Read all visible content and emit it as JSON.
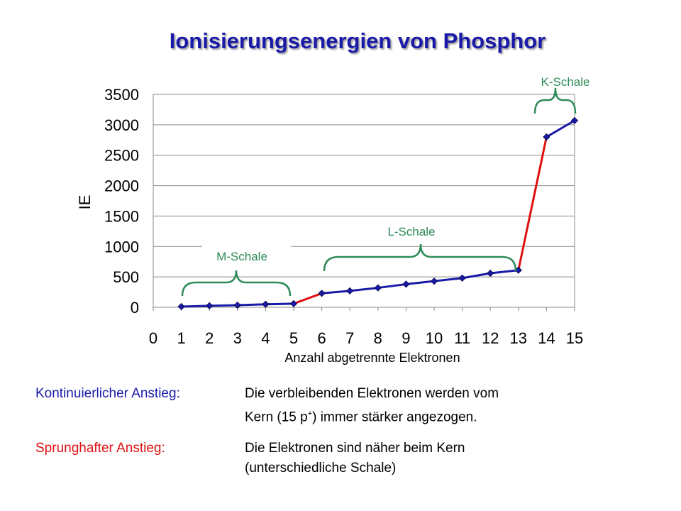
{
  "title": "Ionisierungsenergien von Phosphor",
  "chart_data": {
    "type": "line",
    "xlabel": "Anzahl abgetrennte Elektronen",
    "ylabel": "IE",
    "xlim": [
      0,
      15
    ],
    "ylim": [
      0,
      3500
    ],
    "x_ticks": [
      0,
      1,
      2,
      3,
      4,
      5,
      6,
      7,
      8,
      9,
      10,
      11,
      12,
      13,
      14,
      15
    ],
    "y_ticks": [
      0,
      500,
      1000,
      1500,
      2000,
      2500,
      3000,
      3500
    ],
    "grid": "horizontal",
    "x": [
      1,
      2,
      3,
      4,
      5,
      6,
      7,
      8,
      9,
      10,
      11,
      12,
      13,
      14,
      15
    ],
    "values": [
      12,
      25,
      35,
      50,
      60,
      230,
      270,
      320,
      380,
      430,
      480,
      560,
      610,
      2800,
      3070
    ],
    "segment_colors": {
      "continuous": "#1a1aa8",
      "jump": "#e01010",
      "marker": "#1a1aa8"
    },
    "jump_segments": [
      [
        5,
        6
      ],
      [
        13,
        14
      ]
    ],
    "annotations": {
      "m_shell": "M-Schale",
      "l_shell": "L-Schale",
      "k_shell": "K-Schale",
      "brace_color": "#2e8b57"
    }
  },
  "legend": {
    "continuous_label": "Kontinuierlicher Anstieg:",
    "continuous_desc_1": "Die verbleibenden Elektronen werden vom",
    "continuous_desc_2_pre": "Kern (15 p",
    "continuous_desc_2_sup": "+",
    "continuous_desc_2_post": ") immer stärker angezogen.",
    "jump_label": "Sprunghafter Anstieg:",
    "jump_desc_1": "Die Elektronen sind näher beim Kern",
    "jump_desc_2": "(unterschiedliche Schale)"
  }
}
